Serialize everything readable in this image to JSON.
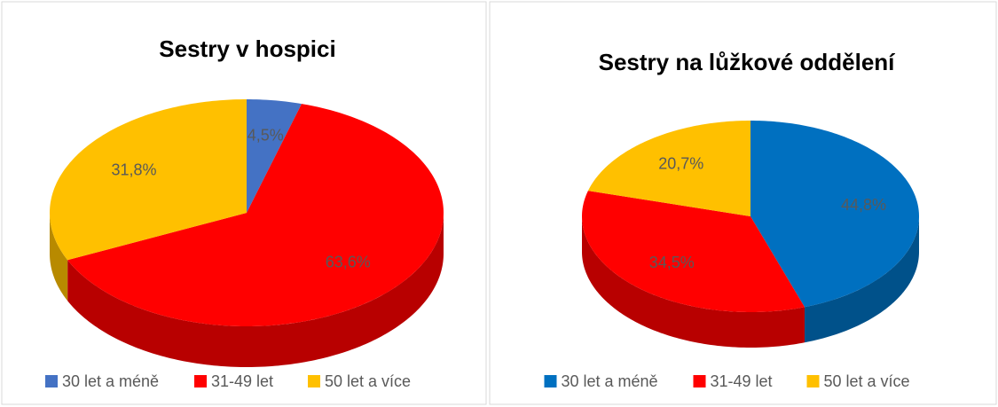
{
  "chart_data": [
    {
      "type": "pie",
      "title": "Sestry v hospici",
      "categories": [
        "30 let a méně",
        "31-49 let",
        "50 let a více"
      ],
      "values": [
        4.5,
        63.6,
        31.8
      ],
      "value_labels": [
        "4,5%",
        "63,6%",
        "31,8%"
      ],
      "colors": [
        "#4472c4",
        "#ff0000",
        "#ffc000"
      ]
    },
    {
      "type": "pie",
      "title": "Sestry na lůžkové oddělení",
      "categories": [
        "30 let a méně",
        "31-49 let",
        "50 let a více"
      ],
      "values": [
        44.8,
        34.5,
        20.7
      ],
      "value_labels": [
        "44,8%",
        "34,5%",
        "20,7%"
      ],
      "colors": [
        "#0070c0",
        "#ff0000",
        "#ffc000"
      ]
    }
  ]
}
